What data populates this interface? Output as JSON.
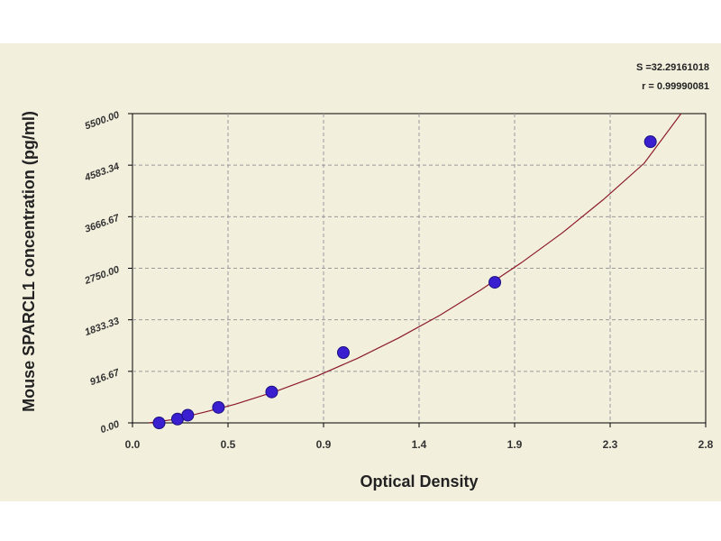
{
  "chart_data": {
    "type": "scatter",
    "xlabel": "Optical Density",
    "ylabel": "Mouse SPARCL1 concentration (pg/ml)",
    "xlim": [
      0.0,
      2.8
    ],
    "ylim": [
      0.0,
      5500.0
    ],
    "x_ticks": [
      "0.0",
      "0.5",
      "0.9",
      "1.4",
      "1.9",
      "2.3",
      "2.8"
    ],
    "y_ticks": [
      "0.00",
      "916.67",
      "1833.33",
      "2750.00",
      "3666.67",
      "4583.34",
      "5500.00"
    ],
    "grid": true,
    "annotations": [
      "S =32.29161018",
      "r = 0.99990081"
    ],
    "colors": {
      "points": "#3a1fd0",
      "curve": "#8b1a2b",
      "background": "#f3efdd",
      "grid": "#9a9a9a"
    },
    "series": [
      {
        "type": "scatter",
        "x": [
          0.13,
          0.22,
          0.27,
          0.42,
          0.68,
          1.03,
          1.77,
          2.53
        ],
        "y": [
          0,
          68,
          137,
          275,
          550,
          1250,
          2500,
          5000
        ]
      }
    ],
    "fit_curve": {
      "type": "line",
      "x": [
        0.08,
        0.2,
        0.35,
        0.5,
        0.7,
        0.9,
        1.1,
        1.3,
        1.5,
        1.7,
        1.9,
        2.1,
        2.3,
        2.5,
        2.68
      ],
      "y": [
        0,
        60,
        190,
        330,
        560,
        830,
        1150,
        1510,
        1910,
        2360,
        2850,
        3380,
        3970,
        4620,
        5500
      ]
    }
  }
}
